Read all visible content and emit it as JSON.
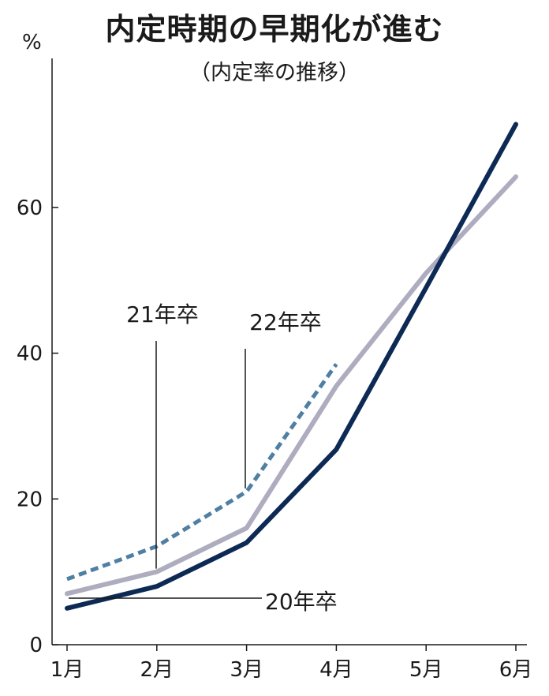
{
  "chart_data": {
    "type": "line",
    "title": "内定時期の早期化が進む",
    "subtitle": "（内定率の推移）",
    "unit": "%",
    "categories": [
      "1月",
      "2月",
      "3月",
      "4月",
      "5月",
      "6月"
    ],
    "ylim": [
      0,
      72
    ],
    "yticks": [
      0,
      20,
      40,
      60
    ],
    "grid": false,
    "series": [
      {
        "name": "20年卒",
        "color": "#0d2a55",
        "style": "solid",
        "values": [
          5,
          8,
          14,
          26.8,
          49,
          71.4
        ]
      },
      {
        "name": "21年卒",
        "color": "#aeacbf",
        "style": "solid",
        "values": [
          7,
          10,
          16,
          35.5,
          51,
          64.2
        ]
      },
      {
        "name": "22年卒",
        "color": "#4f7fa3",
        "style": "dashed",
        "values": [
          9,
          13.5,
          21,
          38.5,
          null,
          null
        ]
      }
    ]
  }
}
